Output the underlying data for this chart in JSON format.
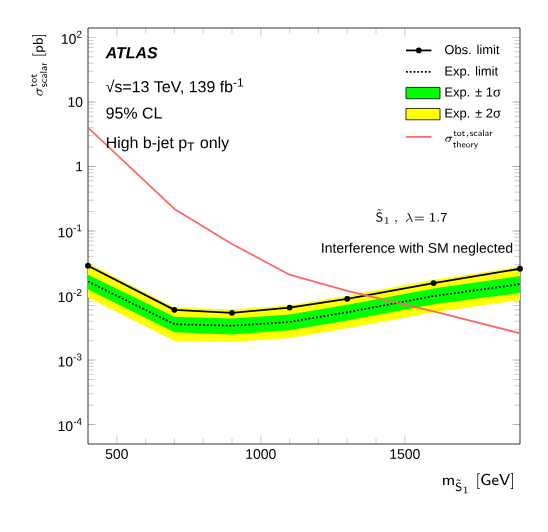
{
  "chart_data": {
    "type": "line",
    "xlabel": "\\mathsf{m}_{\\tilde{\\mathsf{S}}_{1}}\\ [\\mathsf{GeV}]",
    "ylabel": "\\sigma^{\\mathsf{tot}}_{\\mathsf{scalar}}\\ [\\mathsf{pb}]",
    "annotations": [
      "ATLAS",
      "√s=13 TeV, 139 fb$^{-1}$",
      "95% CL",
      "High b-jet p$_{T}$ only",
      "\\tilde{\\mathsf{S}}_{1}\\,,\\ \\lambda\\mathsf{=1.7}",
      "Interference with SM neglected"
    ],
    "series": [
      {
        "name": "Obs. limit",
        "color": "#000000",
        "marker": "circle",
        "line_style": "solid",
        "x": [
          400,
          700,
          900,
          1100,
          1300,
          1600,
          1900
        ],
        "values": [
          0.029,
          0.006,
          0.0054,
          0.0065,
          0.0089,
          0.0156,
          0.026
        ]
      },
      {
        "name": "Exp. limit",
        "color": "#000000",
        "marker": "none",
        "line_style": "dotted",
        "x": [
          400,
          700,
          900,
          1100,
          1300,
          1600,
          1900
        ],
        "values": [
          0.0165,
          0.0036,
          0.0034,
          0.0039,
          0.0055,
          0.0098,
          0.015
        ]
      },
      {
        "name": "Exp. ± 1σ",
        "type": "area",
        "color": "#00ff00",
        "x": [
          400,
          700,
          900,
          1100,
          1300,
          1600,
          1900
        ],
        "values": [
          null,
          null,
          null,
          null,
          null,
          null,
          null
        ],
        "lower": [
          0.0124,
          0.0027,
          0.0025,
          0.0029,
          0.0041,
          0.0073,
          0.011
        ],
        "upper": [
          0.021,
          0.0047,
          0.0044,
          0.0051,
          0.0072,
          0.0128,
          0.02
        ]
      },
      {
        "name": "Exp. ± 2σ",
        "type": "area",
        "color": "#ffff00",
        "x": [
          400,
          700,
          900,
          1100,
          1300,
          1600,
          1900
        ],
        "values": [
          null,
          null,
          null,
          null,
          null,
          null,
          null
        ],
        "lower": [
          0.0093,
          0.002,
          0.0019,
          0.0022,
          0.0031,
          0.0055,
          0.0085
        ],
        "upper": [
          0.032,
          0.0065,
          0.0061,
          0.007,
          0.0099,
          0.0176,
          0.028
        ]
      },
      {
        "name": "\\sigma^{\\mathsf{tot,scalar}}_{\\mathsf{theory}}",
        "color": "#ff6666",
        "marker": "none",
        "line_style": "solid",
        "x": [
          400,
          700,
          900,
          1100,
          1300,
          1600,
          1900
        ],
        "values": [
          4.0,
          0.22,
          0.063,
          0.021,
          0.0118,
          0.0057,
          0.0026
        ]
      }
    ],
    "xlim": [
      400,
      1900
    ],
    "xticks": [
      500,
      1000,
      1500
    ],
    "ylim": [
      5e-05,
      140
    ],
    "yticks": [
      {
        "value": 0.0001,
        "label": "10$^{-4}$"
      },
      {
        "value": 0.001,
        "label": "10$^{-3}$"
      },
      {
        "value": 0.01,
        "label": "10$^{-2}$"
      },
      {
        "value": 0.1,
        "label": "10$^{-1}$"
      },
      {
        "value": 1,
        "label": "1"
      },
      {
        "value": 10,
        "label": "10"
      },
      {
        "value": 100,
        "label": "10$^{2}$"
      }
    ],
    "log": true,
    "grid": false,
    "legend": "top right"
  }
}
